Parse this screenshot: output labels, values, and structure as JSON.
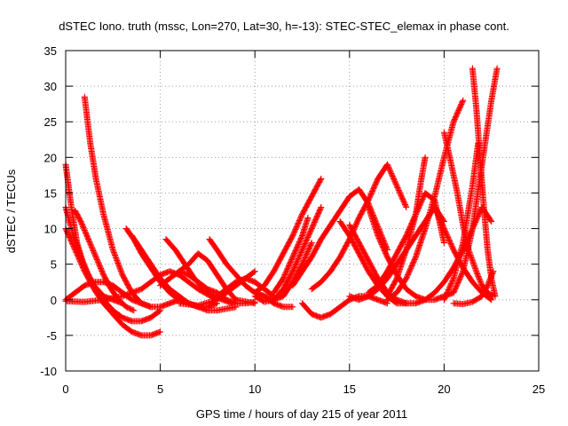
{
  "chart_data": {
    "type": "scatter",
    "title": "dSTEC Iono. truth (mssc, Lon=270, Lat=30, h=-13): STEC-STEC_elemax in phase cont.",
    "xlabel": "GPS time / hours of day 215 of year 2011",
    "ylabel": "dSTEC  / TECUs",
    "xlim": [
      0,
      25
    ],
    "ylim": [
      -10,
      35
    ],
    "xticks": [
      0,
      5,
      10,
      15,
      20,
      25
    ],
    "yticks": [
      -10,
      -5,
      0,
      5,
      10,
      15,
      20,
      25,
      30,
      35
    ],
    "xtick_labels": [
      "0",
      "5",
      "10",
      "15",
      "20",
      "25"
    ],
    "ytick_labels": [
      "-10",
      "-5",
      "0",
      "5",
      "10",
      "15",
      "20",
      "25",
      "30",
      "35"
    ],
    "grid": true,
    "marker": "+",
    "color": "#ff0000",
    "series": [
      {
        "x": [
          0.0,
          0.3,
          0.6,
          1.0,
          1.5,
          2.0,
          2.5,
          3.0
        ],
        "y": [
          19.0,
          13.0,
          8.0,
          4.5,
          2.0,
          0.5,
          0.0,
          -0.5
        ]
      },
      {
        "x": [
          0.0,
          0.4,
          0.8,
          1.2,
          1.6,
          2.0,
          2.5,
          3.0,
          3.5,
          4.0,
          4.5,
          5.0
        ],
        "y": [
          13.0,
          9.0,
          6.0,
          3.5,
          1.5,
          0.0,
          -1.5,
          -2.5,
          -3.0,
          -3.0,
          -2.5,
          -1.5
        ]
      },
      {
        "x": [
          0.5,
          0.8,
          1.2,
          1.6,
          2.0,
          2.4,
          2.8,
          3.2,
          3.6
        ],
        "y": [
          12.5,
          11.0,
          8.5,
          6.0,
          3.5,
          1.5,
          0.0,
          -1.0,
          -1.5
        ]
      },
      {
        "x": [
          1.0,
          1.3,
          1.6,
          2.0,
          2.5,
          3.0,
          3.5,
          4.0,
          4.5
        ],
        "y": [
          28.5,
          22.0,
          17.0,
          12.0,
          7.0,
          3.5,
          1.0,
          -0.5,
          -1.0
        ]
      },
      {
        "x": [
          0.0,
          0.5,
          1.0,
          1.5,
          2.0,
          2.5,
          3.0,
          3.5,
          4.0,
          4.5,
          5.0
        ],
        "y": [
          10.0,
          7.0,
          4.0,
          1.5,
          -0.5,
          -2.0,
          -3.5,
          -4.5,
          -5.0,
          -5.0,
          -4.5
        ]
      },
      {
        "x": [
          0.0,
          0.5,
          1.0,
          1.5,
          2.0,
          2.5,
          3.0,
          3.5,
          4.0,
          4.5,
          5.0,
          5.5,
          6.0
        ],
        "y": [
          0.0,
          1.0,
          2.0,
          2.5,
          2.5,
          2.0,
          1.0,
          0.0,
          -0.5,
          -1.0,
          -1.0,
          -0.5,
          0.0
        ]
      },
      {
        "x": [
          0.0,
          1.0,
          2.0,
          3.0,
          4.0,
          4.5,
          5.0,
          5.5,
          6.0,
          7.0,
          8.0
        ],
        "y": [
          -0.2,
          -0.3,
          0.0,
          0.5,
          1.5,
          2.5,
          3.5,
          4.0,
          3.5,
          1.5,
          0.0
        ]
      },
      {
        "x": [
          3.2,
          3.6,
          4.0,
          4.5,
          5.0,
          5.5,
          6.0,
          6.5,
          7.0,
          7.5,
          8.0
        ],
        "y": [
          10.0,
          8.5,
          6.5,
          4.5,
          2.5,
          1.0,
          0.0,
          -0.5,
          -1.0,
          -1.0,
          -0.5
        ]
      },
      {
        "x": [
          3.5,
          4.0,
          4.5,
          5.0,
          5.5,
          6.0,
          6.5,
          7.0,
          7.5,
          8.0,
          9.0
        ],
        "y": [
          9.0,
          7.0,
          5.0,
          3.0,
          1.5,
          0.5,
          -0.5,
          -1.0,
          -1.5,
          -1.5,
          -1.0
        ]
      },
      {
        "x": [
          5.3,
          5.8,
          6.3,
          6.8,
          7.3,
          7.8,
          8.3,
          8.8
        ],
        "y": [
          8.5,
          7.0,
          5.0,
          3.0,
          1.5,
          0.5,
          0.0,
          -0.5
        ]
      },
      {
        "x": [
          5.0,
          5.5,
          6.0,
          6.5,
          7.0,
          7.5,
          8.0,
          8.5,
          9.0,
          10.0
        ],
        "y": [
          2.0,
          3.0,
          4.0,
          5.0,
          6.5,
          5.5,
          3.5,
          1.5,
          0.0,
          -0.5
        ]
      },
      {
        "x": [
          6.0,
          6.5,
          7.0,
          7.5,
          8.0,
          8.5,
          9.0,
          9.5,
          10.0
        ],
        "y": [
          4.0,
          3.5,
          2.5,
          1.5,
          1.0,
          0.0,
          -0.5,
          -0.5,
          -0.3
        ]
      },
      {
        "x": [
          7.6,
          8.0,
          8.5,
          9.0,
          9.5,
          10.0,
          10.5,
          11.0,
          11.5,
          12.0
        ],
        "y": [
          8.5,
          7.0,
          5.0,
          3.5,
          2.0,
          1.0,
          0.5,
          -0.5,
          -1.0,
          -1.0
        ]
      },
      {
        "x": [
          6.0,
          7.0,
          8.0,
          9.0,
          10.0
        ],
        "y": [
          -0.5,
          -0.8,
          0.0,
          2.0,
          4.0
        ]
      },
      {
        "x": [
          8.0,
          8.5,
          9.0,
          9.5,
          10.0,
          10.5,
          11.0
        ],
        "y": [
          0.5,
          1.5,
          2.5,
          3.0,
          2.5,
          1.5,
          0.5
        ]
      },
      {
        "x": [
          10.0,
          10.5,
          11.0,
          11.5,
          12.0,
          12.5,
          13.0,
          13.5
        ],
        "y": [
          0.5,
          -0.3,
          0.0,
          1.5,
          4.0,
          7.0,
          10.0,
          13.0
        ]
      },
      {
        "x": [
          10.0,
          10.5,
          11.0,
          11.5,
          12.0,
          12.5,
          13.0,
          13.5
        ],
        "y": [
          1.0,
          2.0,
          4.0,
          6.5,
          9.0,
          12.0,
          14.5,
          17.0
        ]
      },
      {
        "x": [
          10.0,
          10.5,
          11.0,
          11.5,
          12.0,
          12.5,
          13.0
        ],
        "y": [
          1.0,
          0.5,
          0.0,
          0.5,
          2.5,
          5.0,
          8.0
        ]
      },
      {
        "x": [
          11.0,
          11.5,
          12.0,
          12.5,
          12.8
        ],
        "y": [
          1.0,
          3.0,
          6.0,
          9.0,
          11.5
        ]
      },
      {
        "x": [
          12.5,
          13.0,
          13.5,
          14.0,
          14.5,
          15.0,
          15.5,
          16.0,
          16.5,
          17.0
        ],
        "y": [
          -0.5,
          -2.0,
          -2.5,
          -2.0,
          -1.0,
          0.0,
          0.5,
          0.5,
          0.0,
          -0.5
        ]
      },
      {
        "x": [
          12.0,
          12.5,
          13.0,
          13.5,
          14.0,
          14.5,
          15.0,
          15.5,
          16.0,
          17.0
        ],
        "y": [
          2.0,
          4.0,
          6.0,
          8.5,
          10.5,
          12.5,
          14.5,
          15.5,
          13.5,
          7.0
        ]
      },
      {
        "x": [
          13.0,
          13.5,
          14.0,
          14.5,
          15.0,
          15.5,
          16.0,
          16.5,
          17.0,
          18.0
        ],
        "y": [
          1.5,
          2.5,
          4.0,
          6.0,
          8.5,
          11.5,
          14.0,
          17.0,
          19.0,
          13.0
        ]
      },
      {
        "x": [
          14.5,
          15.0,
          15.5,
          16.0,
          16.5,
          17.0,
          17.5,
          18.0
        ],
        "y": [
          11.0,
          9.0,
          6.5,
          4.0,
          2.0,
          0.5,
          -0.5,
          -0.5
        ]
      },
      {
        "x": [
          15.0,
          15.5,
          16.0,
          16.5,
          17.0,
          17.5,
          18.0
        ],
        "y": [
          10.5,
          8.0,
          5.5,
          3.0,
          1.0,
          0.0,
          -0.5
        ]
      },
      {
        "x": [
          15.0,
          15.5,
          16.0,
          16.5,
          17.0,
          17.5,
          18.0,
          18.5,
          19.0,
          19.5,
          20.0
        ],
        "y": [
          0.5,
          0.0,
          0.5,
          1.5,
          3.0,
          5.0,
          7.0,
          9.0,
          11.0,
          13.0,
          11.0
        ]
      },
      {
        "x": [
          16.0,
          16.5,
          17.0,
          17.5,
          18.0,
          18.5,
          19.0,
          19.5,
          20.0,
          20.5
        ],
        "y": [
          13.0,
          9.0,
          6.0,
          3.5,
          1.5,
          0.5,
          0.0,
          0.0,
          0.5,
          1.0
        ]
      },
      {
        "x": [
          16.0,
          16.5,
          17.0,
          17.5,
          18.0,
          18.5,
          19.0,
          19.5,
          20.0
        ],
        "y": [
          1.0,
          2.0,
          4.0,
          6.5,
          9.0,
          12.0,
          15.0,
          14.0,
          8.0
        ]
      },
      {
        "x": [
          17.0,
          17.5,
          18.0,
          18.5,
          19.0,
          19.5,
          20.0,
          20.5,
          21.0
        ],
        "y": [
          0.0,
          1.0,
          3.0,
          6.0,
          10.0,
          14.5,
          20.0,
          25.0,
          28.0
        ]
      },
      {
        "x": [
          17.0,
          17.5,
          18.0,
          18.5,
          18.8,
          19.0
        ],
        "y": [
          0.5,
          3.0,
          7.0,
          12.0,
          17.0,
          20.0
        ]
      },
      {
        "x": [
          18.0,
          18.5,
          19.0,
          19.5,
          20.0,
          20.5,
          21.0,
          21.5,
          22.0,
          22.5
        ],
        "y": [
          -0.5,
          -0.5,
          0.0,
          1.0,
          2.5,
          4.5,
          7.0,
          10.0,
          13.0,
          11.0
        ]
      },
      {
        "x": [
          19.5,
          20.0,
          20.5,
          21.0,
          21.5,
          22.0,
          22.5
        ],
        "y": [
          13.0,
          10.0,
          7.0,
          4.5,
          2.5,
          1.0,
          0.0
        ]
      },
      {
        "x": [
          20.0,
          20.3,
          20.7,
          21.0,
          21.3,
          21.7,
          22.0,
          22.3,
          22.6
        ],
        "y": [
          23.5,
          20.0,
          15.0,
          10.5,
          7.0,
          4.0,
          2.0,
          1.0,
          0.5
        ]
      },
      {
        "x": [
          20.5,
          21.0,
          21.5,
          22.0,
          22.5,
          22.8
        ],
        "y": [
          1.0,
          4.0,
          10.0,
          19.0,
          28.0,
          32.5
        ]
      },
      {
        "x": [
          20.0,
          20.5,
          21.0,
          21.5,
          21.8
        ],
        "y": [
          0.0,
          3.0,
          8.0,
          16.0,
          22.0
        ]
      },
      {
        "x": [
          21.5,
          21.7,
          21.9,
          22.1,
          22.3,
          22.5,
          22.7
        ],
        "y": [
          32.5,
          27.0,
          20.0,
          13.0,
          7.0,
          3.0,
          0.5
        ]
      },
      {
        "x": [
          20.5,
          21.0,
          21.5,
          22.0,
          22.3,
          22.6
        ],
        "y": [
          -0.5,
          -0.6,
          -0.3,
          0.5,
          2.0,
          4.0
        ]
      }
    ]
  }
}
